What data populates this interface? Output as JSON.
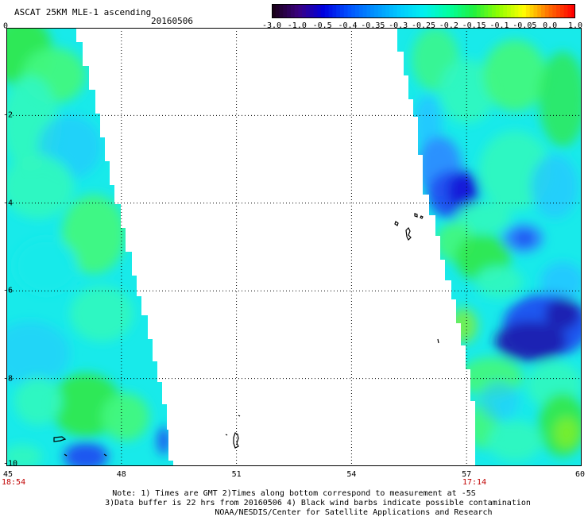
{
  "title": "ASCAT 25KM MLE-1 ascending",
  "date": "20160506",
  "colorbar": {
    "labels": [
      "-3.0",
      "-1.0",
      "-0.5",
      "-0.4",
      "-0.35",
      "-0.3",
      "-0.25",
      "-0.2",
      "-0.15",
      "-0.1",
      "-0.05",
      "0.0",
      "1.0"
    ],
    "colors": [
      "#1a001a",
      "#3a0080",
      "#0000e0",
      "#0050ff",
      "#0090ff",
      "#00c8ff",
      "#00f0f0",
      "#00ffa0",
      "#20f040",
      "#90ff00",
      "#ffff00",
      "#ff7000",
      "#ff0000"
    ]
  },
  "axes": {
    "y_ticks": [
      "0",
      "-2",
      "-4",
      "-6",
      "-8",
      "-10"
    ],
    "x_ticks": [
      "45",
      "48",
      "51",
      "54",
      "57",
      "60"
    ],
    "lat_range": [
      0,
      -10
    ],
    "lon_range": [
      45,
      60
    ]
  },
  "times": {
    "left": "18:54",
    "right": "17:14"
  },
  "notes": [
    "Note: 1) Times are GMT 2)Times along bottom correspond to measurement at -5S",
    "3)Data buffer is 22 hrs from 20160506 4) Black wind barbs indicate possible contamination",
    "NOAA/NESDIS/Center for Satellite Applications and Research"
  ]
}
